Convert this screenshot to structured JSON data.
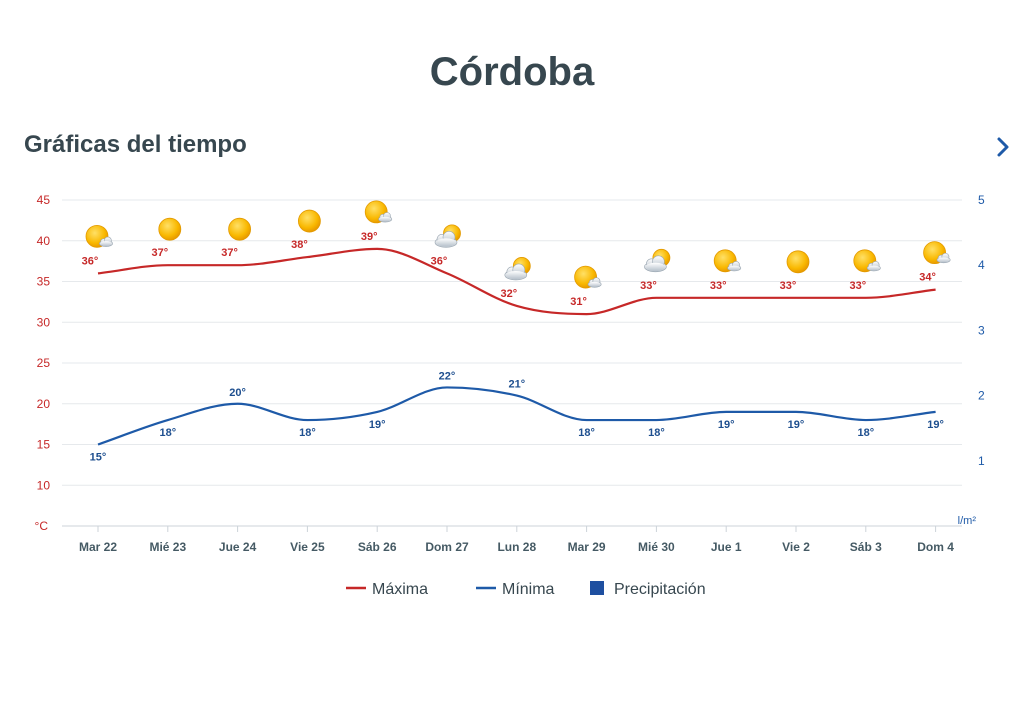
{
  "header": {
    "city": "Córdoba",
    "section_title": "Gráficas del tiempo"
  },
  "nav": {
    "next_icon": "chevron-right-icon"
  },
  "colors": {
    "max": "#c62828",
    "min": "#1e5aa8",
    "precip": "#1e4fa0",
    "text": "#37474f"
  },
  "chart_data": {
    "type": "line",
    "categories": [
      "Mar 22",
      "Mié 23",
      "Jue 24",
      "Vie 25",
      "Sáb 26",
      "Dom 27",
      "Lun 28",
      "Mar 29",
      "Mié 30",
      "Jue 1",
      "Vie 2",
      "Sáb 3",
      "Dom 4"
    ],
    "series": [
      {
        "name": "Máxima",
        "axis": "left",
        "values": [
          36,
          37,
          37,
          38,
          39,
          36,
          32,
          31,
          33,
          33,
          33,
          33,
          34
        ],
        "labels": [
          "36°",
          "37°",
          "37°",
          "38°",
          "39°",
          "36°",
          "32°",
          "31°",
          "33°",
          "33°",
          "33°",
          "33°",
          "34°"
        ]
      },
      {
        "name": "Mínima",
        "axis": "left",
        "values": [
          15,
          18,
          20,
          18,
          19,
          22,
          21,
          18,
          18,
          19,
          19,
          18,
          19
        ],
        "labels": [
          "15°",
          "18°",
          "20°",
          "18°",
          "19°",
          "22°",
          "21°",
          "18°",
          "18°",
          "19°",
          "19°",
          "18°",
          "19°"
        ]
      },
      {
        "name": "Precipitación",
        "axis": "right",
        "type": "bar",
        "values": [
          0,
          0,
          0,
          0,
          0,
          0,
          0,
          0,
          0,
          0,
          0,
          0,
          0
        ]
      }
    ],
    "weather_icons": [
      "sun-cloud-icon",
      "sun-icon",
      "sun-icon",
      "sun-icon",
      "sun-cloud-icon",
      "cloud-sun-icon",
      "cloud-sun-icon",
      "sun-cloud-icon",
      "cloud-sun-icon",
      "sun-cloud-icon",
      "sun-icon",
      "sun-cloud-icon",
      "sun-cloud-icon"
    ],
    "y_left": {
      "unit": "°C",
      "ticks": [
        10,
        15,
        20,
        25,
        30,
        35,
        40,
        45
      ],
      "ylim": [
        5,
        45
      ]
    },
    "y_right": {
      "unit": "l/m²",
      "ticks": [
        1,
        2,
        3,
        4,
        5
      ],
      "ylim": [
        0,
        5
      ]
    },
    "grid": true,
    "legend": {
      "position": "bottom-center",
      "items": [
        "Máxima",
        "Mínima",
        "Precipitación"
      ]
    }
  }
}
